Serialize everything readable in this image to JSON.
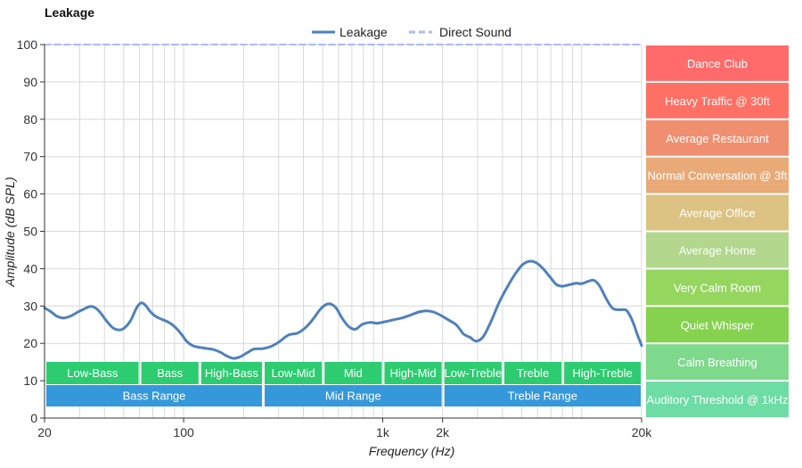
{
  "chart_data": {
    "type": "line",
    "title": "Leakage",
    "xlabel": "Frequency (Hz)",
    "ylabel": "Amplitude (dB SPL)",
    "x_scale": "log",
    "xlim": [
      20,
      20000
    ],
    "ylim": [
      0,
      100
    ],
    "grid": true,
    "legend_placement": "top-center",
    "x_tick_labels": [
      {
        "value": 20,
        "label": "20"
      },
      {
        "value": 100,
        "label": "100"
      },
      {
        "value": 1000,
        "label": "1k"
      },
      {
        "value": 2000,
        "label": "2k"
      },
      {
        "value": 20000,
        "label": "20k"
      }
    ],
    "y_ticks": [
      0,
      10,
      20,
      30,
      40,
      50,
      60,
      70,
      80,
      90,
      100
    ],
    "series": [
      {
        "name": "Leakage",
        "color": "#4f81bd",
        "style": "solid",
        "points": [
          [
            20,
            29.5
          ],
          [
            21.5,
            28.5
          ],
          [
            23,
            27.3
          ],
          [
            25,
            26.8
          ],
          [
            27,
            27.3
          ],
          [
            29,
            28.2
          ],
          [
            31.5,
            29.2
          ],
          [
            34,
            29.9
          ],
          [
            36,
            29.5
          ],
          [
            38,
            28.3
          ],
          [
            41,
            26.0
          ],
          [
            44,
            24.2
          ],
          [
            47,
            23.6
          ],
          [
            50,
            24.0
          ],
          [
            54,
            26.0
          ],
          [
            58,
            29.5
          ],
          [
            61,
            30.8
          ],
          [
            64,
            30.3
          ],
          [
            68,
            28.5
          ],
          [
            72,
            27.3
          ],
          [
            78,
            26.4
          ],
          [
            85,
            25.5
          ],
          [
            92,
            24.0
          ],
          [
            98,
            22.3
          ],
          [
            103,
            20.7
          ],
          [
            110,
            19.5
          ],
          [
            118,
            19.0
          ],
          [
            128,
            18.7
          ],
          [
            140,
            18.4
          ],
          [
            152,
            17.7
          ],
          [
            165,
            16.6
          ],
          [
            178,
            16.0
          ],
          [
            192,
            16.4
          ],
          [
            210,
            17.6
          ],
          [
            226,
            18.5
          ],
          [
            250,
            18.6
          ],
          [
            275,
            19.2
          ],
          [
            300,
            20.3
          ],
          [
            335,
            22.2
          ],
          [
            375,
            22.8
          ],
          [
            415,
            24.5
          ],
          [
            450,
            26.7
          ],
          [
            485,
            29.1
          ],
          [
            520,
            30.4
          ],
          [
            550,
            30.5
          ],
          [
            585,
            29.4
          ],
          [
            625,
            26.8
          ],
          [
            675,
            24.5
          ],
          [
            730,
            23.8
          ],
          [
            790,
            25.1
          ],
          [
            860,
            25.6
          ],
          [
            940,
            25.4
          ],
          [
            1030,
            25.8
          ],
          [
            1130,
            26.3
          ],
          [
            1250,
            26.8
          ],
          [
            1380,
            27.6
          ],
          [
            1520,
            28.4
          ],
          [
            1660,
            28.7
          ],
          [
            1800,
            28.4
          ],
          [
            1960,
            27.5
          ],
          [
            2150,
            26.2
          ],
          [
            2350,
            24.9
          ],
          [
            2550,
            22.5
          ],
          [
            2750,
            21.6
          ],
          [
            2950,
            20.6
          ],
          [
            3200,
            21.8
          ],
          [
            3500,
            25.8
          ],
          [
            3850,
            31.0
          ],
          [
            4250,
            35.3
          ],
          [
            4650,
            38.7
          ],
          [
            5050,
            41.1
          ],
          [
            5500,
            42.0
          ],
          [
            5950,
            41.5
          ],
          [
            6450,
            39.8
          ],
          [
            6950,
            37.7
          ],
          [
            7450,
            35.8
          ],
          [
            8000,
            35.3
          ],
          [
            8650,
            35.7
          ],
          [
            9350,
            36.1
          ],
          [
            10000,
            36.0
          ],
          [
            10800,
            36.6
          ],
          [
            11500,
            36.9
          ],
          [
            12300,
            35.4
          ],
          [
            13300,
            31.9
          ],
          [
            14300,
            29.4
          ],
          [
            15500,
            29.0
          ],
          [
            16800,
            28.8
          ],
          [
            18000,
            26.0
          ],
          [
            19000,
            22.5
          ],
          [
            20000,
            19.4
          ]
        ]
      },
      {
        "name": "Direct Sound",
        "color": "#aabbf5",
        "style": "dashed",
        "points": [
          [
            20,
            100
          ],
          [
            20000,
            100
          ]
        ]
      }
    ],
    "frequency_bands_top": [
      {
        "label": "Low-Bass",
        "from": 20,
        "to": 60,
        "color": "#2ecc71"
      },
      {
        "label": "Bass",
        "from": 60,
        "to": 120,
        "color": "#2ecc71"
      },
      {
        "label": "High-Bass",
        "from": 120,
        "to": 250,
        "color": "#2ecc71"
      },
      {
        "label": "Low-Mid",
        "from": 250,
        "to": 500,
        "color": "#2ecc71"
      },
      {
        "label": "Mid",
        "from": 500,
        "to": 1000,
        "color": "#2ecc71"
      },
      {
        "label": "High-Mid",
        "from": 1000,
        "to": 2000,
        "color": "#2ecc71"
      },
      {
        "label": "Low-Treble",
        "from": 2000,
        "to": 4000,
        "color": "#2ecc71"
      },
      {
        "label": "Treble",
        "from": 4000,
        "to": 8000,
        "color": "#2ecc71"
      },
      {
        "label": "High-Treble",
        "from": 8000,
        "to": 20000,
        "color": "#2ecc71"
      }
    ],
    "frequency_bands_bottom": [
      {
        "label": "Bass Range",
        "from": 20,
        "to": 250,
        "color": "#3498db"
      },
      {
        "label": "Mid Range",
        "from": 250,
        "to": 2000,
        "color": "#3498db"
      },
      {
        "label": "Treble Range",
        "from": 2000,
        "to": 20000,
        "color": "#3498db"
      }
    ],
    "reference_levels": [
      {
        "label": "Dance Club",
        "from": 90,
        "to": 100,
        "color": "#ff6b6b"
      },
      {
        "label": "Heavy Traffic @ 30ft",
        "from": 80,
        "to": 90,
        "color": "#ff7064"
      },
      {
        "label": "Average Restaurant",
        "from": 70,
        "to": 80,
        "color": "#f08f70"
      },
      {
        "label": "Normal Conversation @ 3ft",
        "from": 60,
        "to": 70,
        "color": "#e9aa78"
      },
      {
        "label": "Average Office",
        "from": 50,
        "to": 60,
        "color": "#dcc383"
      },
      {
        "label": "Average Home",
        "from": 40,
        "to": 50,
        "color": "#b2d78d"
      },
      {
        "label": "Very Calm Room",
        "from": 30,
        "to": 40,
        "color": "#95d65f"
      },
      {
        "label": "Quiet Whisper",
        "from": 20,
        "to": 30,
        "color": "#85d24e"
      },
      {
        "label": "Calm Breathing",
        "from": 10,
        "to": 20,
        "color": "#7fd98c"
      },
      {
        "label": "Auditory Threshold @ 1kHz",
        "from": 0,
        "to": 10,
        "color": "#6ddca5"
      }
    ]
  }
}
